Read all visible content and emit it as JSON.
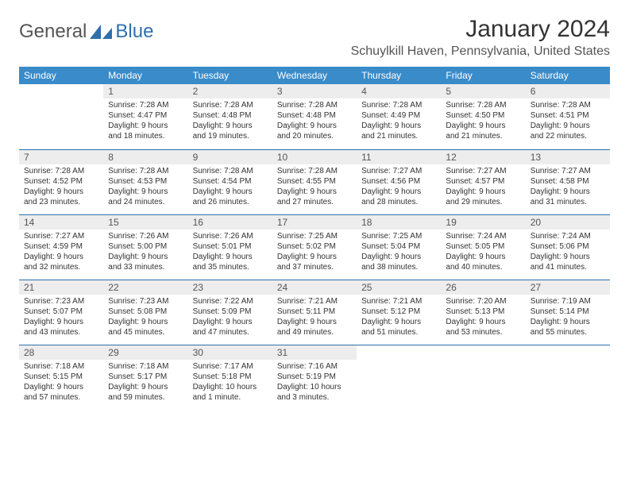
{
  "logo": {
    "general": "General",
    "blue": "Blue"
  },
  "title": "January 2024",
  "location": "Schuylkill Haven, Pennsylvania, United States",
  "day_headers": [
    "Sunday",
    "Monday",
    "Tuesday",
    "Wednesday",
    "Thursday",
    "Friday",
    "Saturday"
  ],
  "colors": {
    "header_bg": "#3a8bc9",
    "header_text": "#ffffff",
    "daynum_bg": "#ededed",
    "border": "#2e6fab",
    "text": "#333333"
  },
  "weeks": [
    [
      {
        "num": "",
        "lines": []
      },
      {
        "num": "1",
        "lines": [
          "Sunrise: 7:28 AM",
          "Sunset: 4:47 PM",
          "Daylight: 9 hours",
          "and 18 minutes."
        ]
      },
      {
        "num": "2",
        "lines": [
          "Sunrise: 7:28 AM",
          "Sunset: 4:48 PM",
          "Daylight: 9 hours",
          "and 19 minutes."
        ]
      },
      {
        "num": "3",
        "lines": [
          "Sunrise: 7:28 AM",
          "Sunset: 4:48 PM",
          "Daylight: 9 hours",
          "and 20 minutes."
        ]
      },
      {
        "num": "4",
        "lines": [
          "Sunrise: 7:28 AM",
          "Sunset: 4:49 PM",
          "Daylight: 9 hours",
          "and 21 minutes."
        ]
      },
      {
        "num": "5",
        "lines": [
          "Sunrise: 7:28 AM",
          "Sunset: 4:50 PM",
          "Daylight: 9 hours",
          "and 21 minutes."
        ]
      },
      {
        "num": "6",
        "lines": [
          "Sunrise: 7:28 AM",
          "Sunset: 4:51 PM",
          "Daylight: 9 hours",
          "and 22 minutes."
        ]
      }
    ],
    [
      {
        "num": "7",
        "lines": [
          "Sunrise: 7:28 AM",
          "Sunset: 4:52 PM",
          "Daylight: 9 hours",
          "and 23 minutes."
        ]
      },
      {
        "num": "8",
        "lines": [
          "Sunrise: 7:28 AM",
          "Sunset: 4:53 PM",
          "Daylight: 9 hours",
          "and 24 minutes."
        ]
      },
      {
        "num": "9",
        "lines": [
          "Sunrise: 7:28 AM",
          "Sunset: 4:54 PM",
          "Daylight: 9 hours",
          "and 26 minutes."
        ]
      },
      {
        "num": "10",
        "lines": [
          "Sunrise: 7:28 AM",
          "Sunset: 4:55 PM",
          "Daylight: 9 hours",
          "and 27 minutes."
        ]
      },
      {
        "num": "11",
        "lines": [
          "Sunrise: 7:27 AM",
          "Sunset: 4:56 PM",
          "Daylight: 9 hours",
          "and 28 minutes."
        ]
      },
      {
        "num": "12",
        "lines": [
          "Sunrise: 7:27 AM",
          "Sunset: 4:57 PM",
          "Daylight: 9 hours",
          "and 29 minutes."
        ]
      },
      {
        "num": "13",
        "lines": [
          "Sunrise: 7:27 AM",
          "Sunset: 4:58 PM",
          "Daylight: 9 hours",
          "and 31 minutes."
        ]
      }
    ],
    [
      {
        "num": "14",
        "lines": [
          "Sunrise: 7:27 AM",
          "Sunset: 4:59 PM",
          "Daylight: 9 hours",
          "and 32 minutes."
        ]
      },
      {
        "num": "15",
        "lines": [
          "Sunrise: 7:26 AM",
          "Sunset: 5:00 PM",
          "Daylight: 9 hours",
          "and 33 minutes."
        ]
      },
      {
        "num": "16",
        "lines": [
          "Sunrise: 7:26 AM",
          "Sunset: 5:01 PM",
          "Daylight: 9 hours",
          "and 35 minutes."
        ]
      },
      {
        "num": "17",
        "lines": [
          "Sunrise: 7:25 AM",
          "Sunset: 5:02 PM",
          "Daylight: 9 hours",
          "and 37 minutes."
        ]
      },
      {
        "num": "18",
        "lines": [
          "Sunrise: 7:25 AM",
          "Sunset: 5:04 PM",
          "Daylight: 9 hours",
          "and 38 minutes."
        ]
      },
      {
        "num": "19",
        "lines": [
          "Sunrise: 7:24 AM",
          "Sunset: 5:05 PM",
          "Daylight: 9 hours",
          "and 40 minutes."
        ]
      },
      {
        "num": "20",
        "lines": [
          "Sunrise: 7:24 AM",
          "Sunset: 5:06 PM",
          "Daylight: 9 hours",
          "and 41 minutes."
        ]
      }
    ],
    [
      {
        "num": "21",
        "lines": [
          "Sunrise: 7:23 AM",
          "Sunset: 5:07 PM",
          "Daylight: 9 hours",
          "and 43 minutes."
        ]
      },
      {
        "num": "22",
        "lines": [
          "Sunrise: 7:23 AM",
          "Sunset: 5:08 PM",
          "Daylight: 9 hours",
          "and 45 minutes."
        ]
      },
      {
        "num": "23",
        "lines": [
          "Sunrise: 7:22 AM",
          "Sunset: 5:09 PM",
          "Daylight: 9 hours",
          "and 47 minutes."
        ]
      },
      {
        "num": "24",
        "lines": [
          "Sunrise: 7:21 AM",
          "Sunset: 5:11 PM",
          "Daylight: 9 hours",
          "and 49 minutes."
        ]
      },
      {
        "num": "25",
        "lines": [
          "Sunrise: 7:21 AM",
          "Sunset: 5:12 PM",
          "Daylight: 9 hours",
          "and 51 minutes."
        ]
      },
      {
        "num": "26",
        "lines": [
          "Sunrise: 7:20 AM",
          "Sunset: 5:13 PM",
          "Daylight: 9 hours",
          "and 53 minutes."
        ]
      },
      {
        "num": "27",
        "lines": [
          "Sunrise: 7:19 AM",
          "Sunset: 5:14 PM",
          "Daylight: 9 hours",
          "and 55 minutes."
        ]
      }
    ],
    [
      {
        "num": "28",
        "lines": [
          "Sunrise: 7:18 AM",
          "Sunset: 5:15 PM",
          "Daylight: 9 hours",
          "and 57 minutes."
        ]
      },
      {
        "num": "29",
        "lines": [
          "Sunrise: 7:18 AM",
          "Sunset: 5:17 PM",
          "Daylight: 9 hours",
          "and 59 minutes."
        ]
      },
      {
        "num": "30",
        "lines": [
          "Sunrise: 7:17 AM",
          "Sunset: 5:18 PM",
          "Daylight: 10 hours",
          "and 1 minute."
        ]
      },
      {
        "num": "31",
        "lines": [
          "Sunrise: 7:16 AM",
          "Sunset: 5:19 PM",
          "Daylight: 10 hours",
          "and 3 minutes."
        ]
      },
      {
        "num": "",
        "lines": []
      },
      {
        "num": "",
        "lines": []
      },
      {
        "num": "",
        "lines": []
      }
    ]
  ]
}
